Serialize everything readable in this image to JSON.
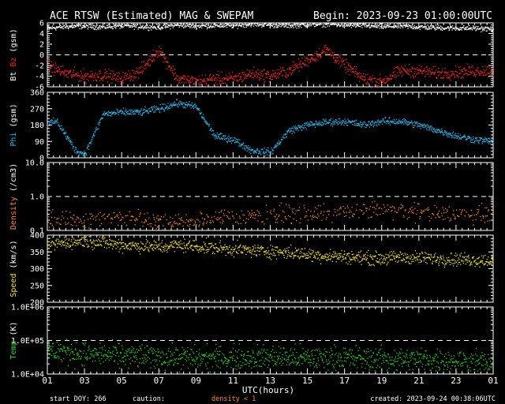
{
  "header": {
    "title": "ACE RTSW (Estimated) MAG & SWEPAM",
    "begin": "Begin: 2023-09-23 01:00:00UTC"
  },
  "footer": {
    "start_doy": "start DOY: 266",
    "caution": "caution:",
    "density_note": "density < 1",
    "created": "created: 2023-09-24 00:38:06UTC"
  },
  "colors": {
    "background": "#000000",
    "axes": "#ffffff",
    "bt": "#ffffff",
    "bz": "#ff2020",
    "phi": "#20b8f0",
    "density": "#ff8c1a",
    "speed": "#f0e020",
    "temp": "#20d820",
    "caution": "#ff8c1a"
  },
  "chart_data": {
    "type": "scatter",
    "x_label": "UTC(hours)",
    "x_ticks": [
      "01",
      "03",
      "05",
      "07",
      "09",
      "11",
      "13",
      "15",
      "17",
      "19",
      "21",
      "23",
      "01"
    ],
    "x_range_hours": [
      0,
      24
    ],
    "panels": [
      {
        "id": "mag",
        "ylabel_parts": [
          "Bt",
          "Bz",
          "(gsm)"
        ],
        "ylim": [
          -6,
          6
        ],
        "y_ticks": [
          "6",
          "4",
          "2",
          "0",
          "-2",
          "-4",
          "-6"
        ],
        "y_tick_values": [
          6,
          4,
          2,
          0,
          -2,
          -4,
          -6
        ],
        "dashed_refs": [
          0
        ],
        "series": [
          {
            "name": "Bt",
            "hours": [
              0,
              1,
              2,
              3,
              4,
              5,
              6,
              7,
              8,
              9,
              10,
              11,
              12,
              13,
              14,
              15,
              16,
              17,
              18,
              19,
              20,
              21,
              22,
              23,
              24
            ],
            "values": [
              5.0,
              5.3,
              5.4,
              5.2,
              5.5,
              5.3,
              5.2,
              5.6,
              5.4,
              5.5,
              5.5,
              5.8,
              5.6,
              5.5,
              5.7,
              5.8,
              5.6,
              5.5,
              5.3,
              5.4,
              5.2,
              5.1,
              5.0,
              5.0,
              4.8
            ]
          },
          {
            "name": "Bz",
            "hours": [
              0,
              1,
              2,
              3,
              4,
              5,
              6,
              7,
              8,
              9,
              10,
              11,
              12,
              13,
              14,
              15,
              16,
              17,
              18,
              19,
              20,
              21,
              22,
              23,
              24
            ],
            "values": [
              -2.0,
              -3.5,
              -4.0,
              -3.8,
              -4.5,
              -3.0,
              1.0,
              -4.5,
              -5.0,
              -4.5,
              -4.5,
              -3.5,
              -4.0,
              -3.0,
              -1.0,
              1.0,
              -2.0,
              -4.5,
              -5.0,
              -3.0,
              -3.0,
              -3.5,
              -3.3,
              -3.0,
              -3.0
            ]
          }
        ]
      },
      {
        "id": "phi",
        "ylabel_parts": [
          "Phi",
          "(gsm)"
        ],
        "ylim": [
          0,
          360
        ],
        "y_ticks": [
          "360",
          "270",
          "180",
          "90",
          "0"
        ],
        "y_tick_values": [
          360,
          270,
          180,
          90,
          0
        ],
        "dashed_refs": [],
        "series": [
          {
            "name": "Phi",
            "hours": [
              0,
              0.5,
              1,
              1.5,
              2,
              3,
              4,
              5,
              6,
              7,
              8,
              9,
              10,
              11,
              12,
              13,
              14,
              15,
              16,
              17,
              18,
              19,
              20,
              21,
              22,
              23,
              24
            ],
            "values": [
              190,
              200,
              120,
              40,
              20,
              240,
              250,
              250,
              270,
              300,
              280,
              120,
              100,
              40,
              30,
              150,
              180,
              195,
              200,
              180,
              200,
              200,
              180,
              150,
              120,
              100,
              90
            ]
          }
        ]
      },
      {
        "id": "density",
        "ylabel_parts": [
          "Density",
          "(/cm3)"
        ],
        "ylim": [
          0.1,
          10
        ],
        "scale": "log",
        "y_ticks": [
          "10.0",
          "1.0",
          "0.1"
        ],
        "y_tick_values": [
          10,
          1,
          0.1
        ],
        "dashed_refs": [
          10,
          1
        ],
        "series": [
          {
            "name": "Density",
            "hours": [
              0,
              2,
              4,
              6,
              8,
              10,
              12,
              14,
              16,
              18,
              20,
              22,
              24
            ],
            "values": [
              0.2,
              0.2,
              0.25,
              0.2,
              0.2,
              0.25,
              0.3,
              0.3,
              0.35,
              0.4,
              0.35,
              0.3,
              0.3
            ]
          }
        ]
      },
      {
        "id": "speed",
        "ylabel_parts": [
          "Speed",
          "(km/s)"
        ],
        "ylim": [
          200,
          400
        ],
        "y_ticks": [
          "400",
          "350",
          "300",
          "250",
          "200"
        ],
        "y_tick_values": [
          400,
          350,
          300,
          250,
          200
        ],
        "dashed_refs": [],
        "series": [
          {
            "name": "Speed",
            "hours": [
              0,
              1,
              2,
              3,
              4,
              5,
              6,
              7,
              8,
              9,
              10,
              11,
              12,
              13,
              14,
              15,
              16,
              17,
              18,
              19,
              20,
              21,
              22,
              23,
              24
            ],
            "values": [
              372,
              378,
              383,
              378,
              370,
              368,
              364,
              370,
              366,
              362,
              358,
              354,
              352,
              348,
              342,
              338,
              336,
              332,
              330,
              334,
              332,
              330,
              328,
              326,
              324
            ]
          }
        ]
      },
      {
        "id": "temp",
        "ylabel_parts": [
          "Temp",
          "(K)"
        ],
        "ylim": [
          10000,
          1000000
        ],
        "scale": "log",
        "y_ticks": [
          "1.0E+06",
          "1.0E+05",
          "1.0E+04"
        ],
        "y_tick_values": [
          1000000,
          100000,
          10000
        ],
        "dashed_refs": [
          100000
        ],
        "series": [
          {
            "name": "Temp",
            "hours": [
              0,
              2,
              4,
              6,
              8,
              10,
              12,
              14,
              16,
              18,
              20,
              22,
              24
            ],
            "values": [
              50000,
              40000,
              35000,
              32000,
              30000,
              30000,
              32000,
              30000,
              30000,
              28000,
              27000,
              25000,
              20000
            ]
          }
        ]
      }
    ]
  }
}
